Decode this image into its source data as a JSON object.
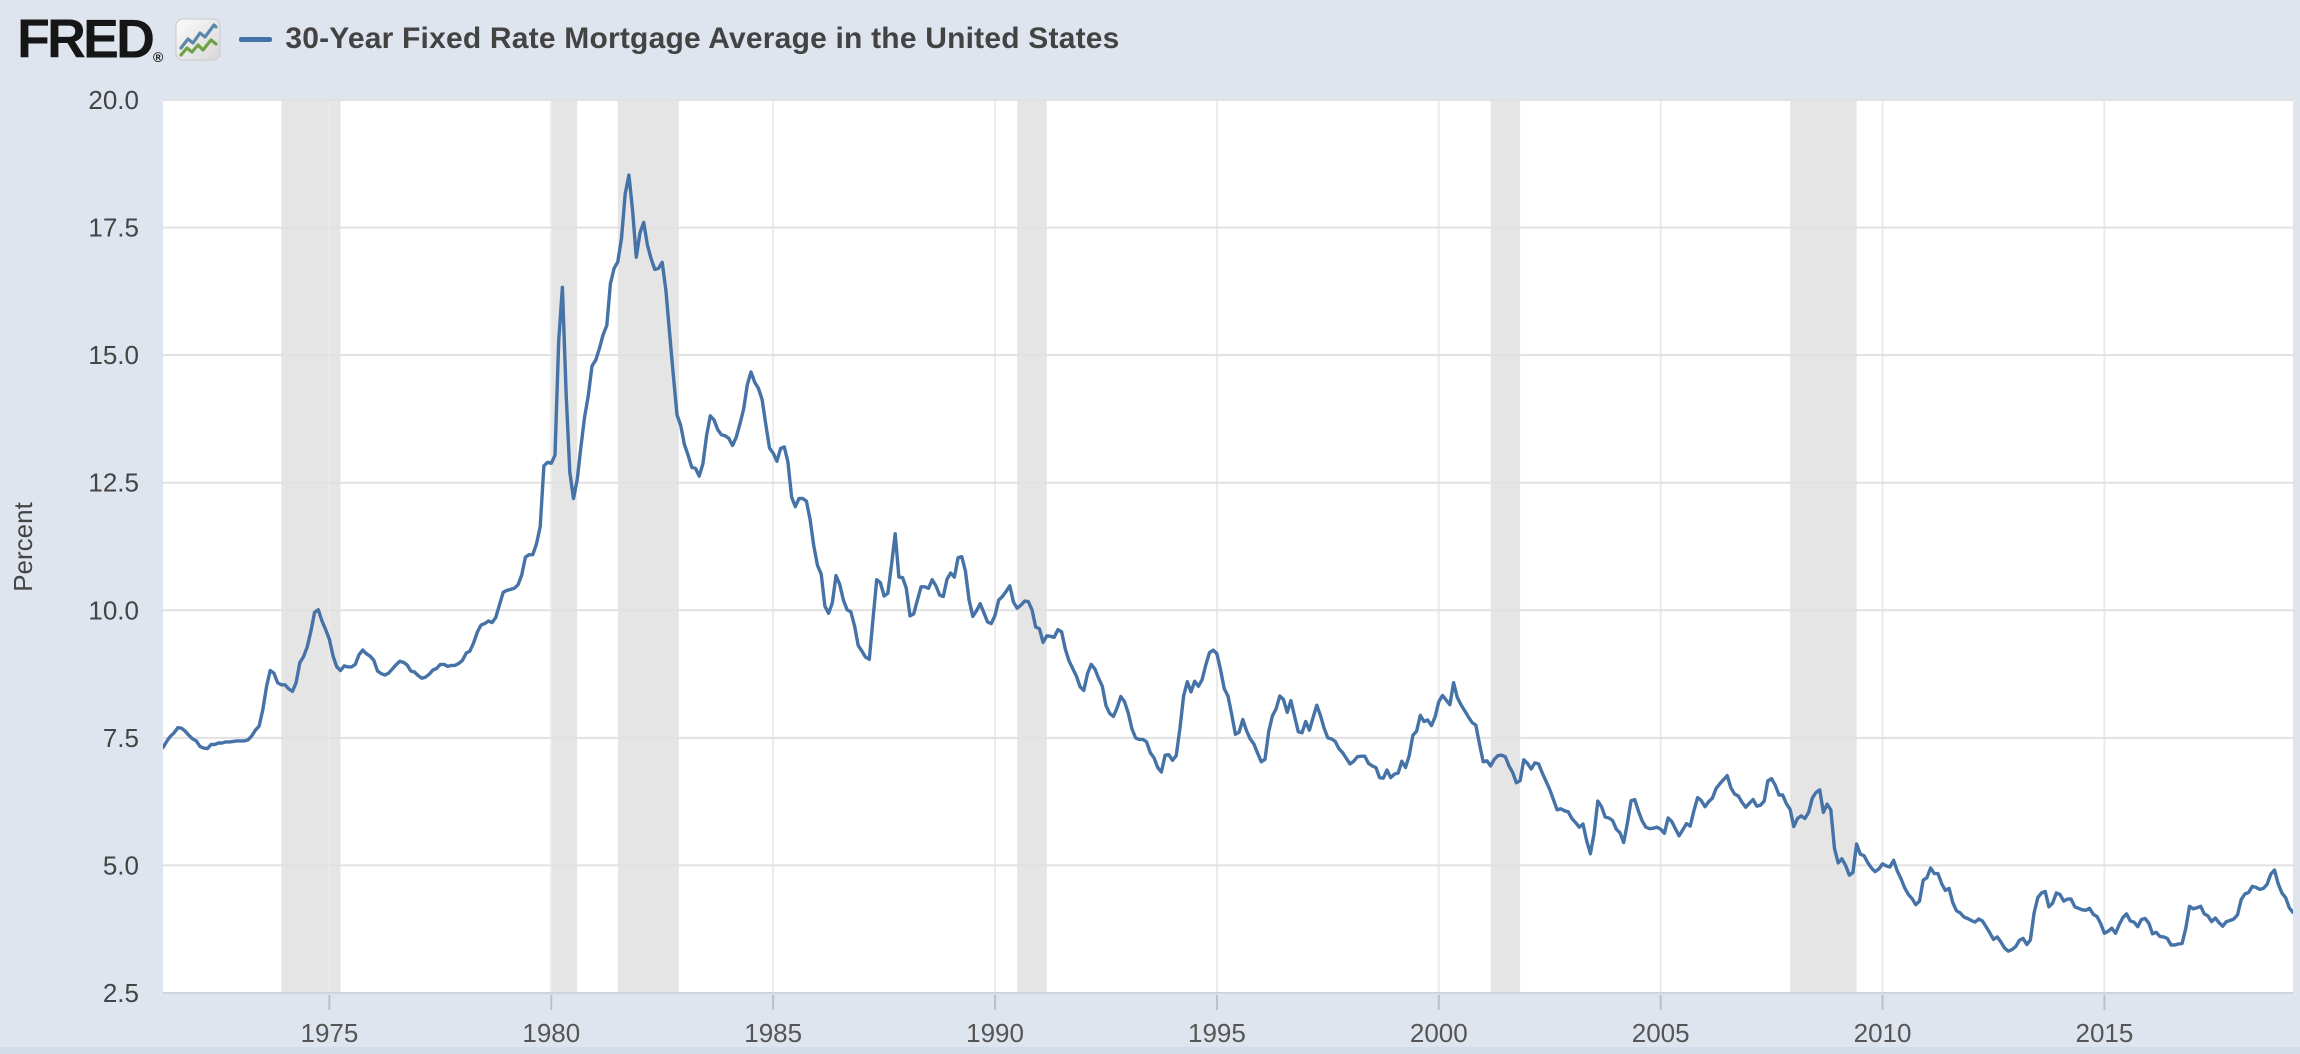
{
  "header": {
    "logo_text": "FRED",
    "registered_mark": "®",
    "legend_series_label": "30-Year Fixed Rate Mortgage Average in the United States"
  },
  "icons": {
    "fred_chart_icon": {
      "name": "fred-chart-icon",
      "blue_line": "#5b87a9",
      "green_line": "#6fa246",
      "background": "#f5f5f5",
      "border": "#c9c9c9"
    },
    "legend_line_swatch": {
      "name": "legend-line-swatch",
      "color": "#4572a7"
    }
  },
  "colors": {
    "page_background": "#dfe5ee",
    "plot_background": "#ffffff",
    "series_line": "#4572a7",
    "recession_band": "#e5e5e5",
    "h_gridline": "#e1e1e1",
    "v_gridline": "#ebebeb",
    "axis_edge": "#ccd5de",
    "tick_mark": "#b6c1cd",
    "tick_label": "#555555",
    "y_label": "#444444"
  },
  "chart_data": {
    "type": "line",
    "title": "30-Year Fixed Rate Mortgage Average in the United States",
    "xlabel": "",
    "ylabel": "Percent",
    "legend_position": "top-left header",
    "grid": true,
    "xlim": [
      1971.25,
      2019.25
    ],
    "ylim": [
      2.5,
      20.0
    ],
    "y_ticks": [
      2.5,
      5.0,
      7.5,
      10.0,
      12.5,
      15.0,
      17.5,
      20.0
    ],
    "x_ticks": [
      1975,
      1980,
      1985,
      1990,
      1995,
      2000,
      2005,
      2010,
      2015
    ],
    "recession_bands": [
      [
        1973.917,
        1975.25
      ],
      [
        1980.0,
        1980.583
      ],
      [
        1981.5,
        1982.875
      ],
      [
        1990.5,
        1991.167
      ],
      [
        2001.167,
        2001.833
      ],
      [
        2007.917,
        2009.417
      ]
    ],
    "series": {
      "name": "30-Year Fixed Rate Mortgage Average in the United States",
      "units": "Percent",
      "start_year": 1971.25,
      "points_per_year": 12,
      "values": [
        7.31,
        7.43,
        7.53,
        7.6,
        7.7,
        7.69,
        7.63,
        7.55,
        7.48,
        7.44,
        7.33,
        7.3,
        7.29,
        7.37,
        7.37,
        7.4,
        7.4,
        7.42,
        7.42,
        7.43,
        7.44,
        7.44,
        7.44,
        7.46,
        7.54,
        7.65,
        7.73,
        8.05,
        8.5,
        8.82,
        8.77,
        8.58,
        8.54,
        8.54,
        8.46,
        8.41,
        8.58,
        8.97,
        9.09,
        9.28,
        9.59,
        9.96,
        10.01,
        9.79,
        9.62,
        9.43,
        9.1,
        8.89,
        8.82,
        8.91,
        8.89,
        8.89,
        8.94,
        9.13,
        9.22,
        9.15,
        9.1,
        9.02,
        8.81,
        8.76,
        8.73,
        8.77,
        8.85,
        8.93,
        9.0,
        8.98,
        8.93,
        8.81,
        8.79,
        8.72,
        8.67,
        8.69,
        8.75,
        8.83,
        8.86,
        8.94,
        8.94,
        8.9,
        8.92,
        8.92,
        8.96,
        9.02,
        9.16,
        9.2,
        9.36,
        9.57,
        9.71,
        9.74,
        9.79,
        9.76,
        9.86,
        10.11,
        10.35,
        10.39,
        10.41,
        10.43,
        10.5,
        10.69,
        11.04,
        11.09,
        11.09,
        11.3,
        11.64,
        12.83,
        12.9,
        12.88,
        13.04,
        15.28,
        16.33,
        14.26,
        12.71,
        12.19,
        12.56,
        13.2,
        13.79,
        14.21,
        14.79,
        14.9,
        15.13,
        15.4,
        15.58,
        16.4,
        16.7,
        16.83,
        17.29,
        18.16,
        18.53,
        17.83,
        16.92,
        17.4,
        17.6,
        17.16,
        16.89,
        16.68,
        16.7,
        16.82,
        16.27,
        15.43,
        14.61,
        13.83,
        13.62,
        13.25,
        13.04,
        12.8,
        12.78,
        12.63,
        12.87,
        13.43,
        13.81,
        13.73,
        13.54,
        13.44,
        13.42,
        13.37,
        13.23,
        13.39,
        13.65,
        13.94,
        14.42,
        14.67,
        14.47,
        14.35,
        14.13,
        13.64,
        13.18,
        13.08,
        12.92,
        13.17,
        13.2,
        12.91,
        12.22,
        12.03,
        12.19,
        12.19,
        12.14,
        11.78,
        11.26,
        10.88,
        10.71,
        10.08,
        9.94,
        10.14,
        10.68,
        10.51,
        10.2,
        10.01,
        9.97,
        9.7,
        9.31,
        9.2,
        9.08,
        9.04,
        9.83,
        10.6,
        10.54,
        10.28,
        10.33,
        10.89,
        11.5,
        10.65,
        10.64,
        10.43,
        9.89,
        9.93,
        10.2,
        10.46,
        10.46,
        10.43,
        10.6,
        10.48,
        10.3,
        10.27,
        10.61,
        10.73,
        10.65,
        11.03,
        11.05,
        10.77,
        10.2,
        9.88,
        9.99,
        10.13,
        9.95,
        9.77,
        9.74,
        9.9,
        10.2,
        10.27,
        10.37,
        10.48,
        10.16,
        10.04,
        10.1,
        10.18,
        10.17,
        10.01,
        9.67,
        9.64,
        9.37,
        9.5,
        9.49,
        9.47,
        9.62,
        9.58,
        9.24,
        9.01,
        8.86,
        8.71,
        8.5,
        8.43,
        8.76,
        8.94,
        8.85,
        8.67,
        8.51,
        8.13,
        7.98,
        7.92,
        8.09,
        8.31,
        8.21,
        7.99,
        7.68,
        7.5,
        7.47,
        7.47,
        7.42,
        7.21,
        7.11,
        6.92,
        6.83,
        7.16,
        7.17,
        7.06,
        7.15,
        7.68,
        8.32,
        8.6,
        8.4,
        8.61,
        8.51,
        8.64,
        8.93,
        9.17,
        9.22,
        9.15,
        8.83,
        8.46,
        8.32,
        7.96,
        7.57,
        7.61,
        7.86,
        7.64,
        7.48,
        7.38,
        7.2,
        7.03,
        7.08,
        7.62,
        7.93,
        8.07,
        8.32,
        8.25,
        8.0,
        8.23,
        7.92,
        7.62,
        7.6,
        7.82,
        7.65,
        7.9,
        8.14,
        7.94,
        7.69,
        7.5,
        7.48,
        7.43,
        7.29,
        7.21,
        7.1,
        6.99,
        7.04,
        7.13,
        7.14,
        7.14,
        7.0,
        6.95,
        6.92,
        6.72,
        6.71,
        6.87,
        6.72,
        6.79,
        6.81,
        7.04,
        6.92,
        7.15,
        7.55,
        7.63,
        7.94,
        7.82,
        7.85,
        7.74,
        7.91,
        8.21,
        8.33,
        8.24,
        8.15,
        8.58,
        8.29,
        8.15,
        8.03,
        7.91,
        7.8,
        7.75,
        7.38,
        7.03,
        7.05,
        6.95,
        7.08,
        7.15,
        7.16,
        7.13,
        6.95,
        6.82,
        6.62,
        6.66,
        7.07,
        7.0,
        6.89,
        7.01,
        6.99,
        6.81,
        6.65,
        6.49,
        6.29,
        6.09,
        6.11,
        6.07,
        6.05,
        5.92,
        5.84,
        5.75,
        5.81,
        5.48,
        5.23,
        5.63,
        6.26,
        6.15,
        5.95,
        5.93,
        5.88,
        5.71,
        5.64,
        5.45,
        5.83,
        6.27,
        6.29,
        6.06,
        5.87,
        5.75,
        5.72,
        5.73,
        5.75,
        5.71,
        5.63,
        5.93,
        5.86,
        5.72,
        5.58,
        5.7,
        5.82,
        5.77,
        6.07,
        6.33,
        6.27,
        6.15,
        6.25,
        6.32,
        6.51,
        6.6,
        6.68,
        6.76,
        6.52,
        6.4,
        6.36,
        6.24,
        6.14,
        6.22,
        6.29,
        6.16,
        6.18,
        6.26,
        6.66,
        6.7,
        6.57,
        6.38,
        6.38,
        6.21,
        6.1,
        5.76,
        5.92,
        5.97,
        5.92,
        6.04,
        6.32,
        6.43,
        6.48,
        6.04,
        6.2,
        6.09,
        5.33,
        5.05,
        5.13,
        5.0,
        4.81,
        4.86,
        5.42,
        5.22,
        5.19,
        5.06,
        4.95,
        4.88,
        4.93,
        5.03,
        4.99,
        4.97,
        5.1,
        4.89,
        4.74,
        4.56,
        4.43,
        4.35,
        4.23,
        4.3,
        4.71,
        4.76,
        4.95,
        4.84,
        4.84,
        4.64,
        4.51,
        4.55,
        4.27,
        4.11,
        4.07,
        3.99,
        3.96,
        3.92,
        3.89,
        3.95,
        3.91,
        3.8,
        3.68,
        3.55,
        3.6,
        3.5,
        3.38,
        3.32,
        3.35,
        3.41,
        3.53,
        3.57,
        3.45,
        3.54,
        4.07,
        4.37,
        4.46,
        4.49,
        4.19,
        4.26,
        4.46,
        4.43,
        4.3,
        4.34,
        4.34,
        4.19,
        4.16,
        4.13,
        4.12,
        4.16,
        4.04,
        4.0,
        3.86,
        3.67,
        3.71,
        3.77,
        3.67,
        3.84,
        3.98,
        4.05,
        3.91,
        3.89,
        3.8,
        3.94,
        3.96,
        3.87,
        3.66,
        3.69,
        3.61,
        3.6,
        3.57,
        3.44,
        3.44,
        3.46,
        3.47,
        3.77,
        4.2,
        4.15,
        4.17,
        4.2,
        4.05,
        4.01,
        3.9,
        3.97,
        3.88,
        3.81,
        3.9,
        3.92,
        3.95,
        4.03,
        4.33,
        4.44,
        4.47,
        4.59,
        4.57,
        4.53,
        4.55,
        4.63,
        4.83,
        4.91,
        4.64,
        4.46,
        4.37,
        4.17,
        4.08
      ]
    }
  }
}
